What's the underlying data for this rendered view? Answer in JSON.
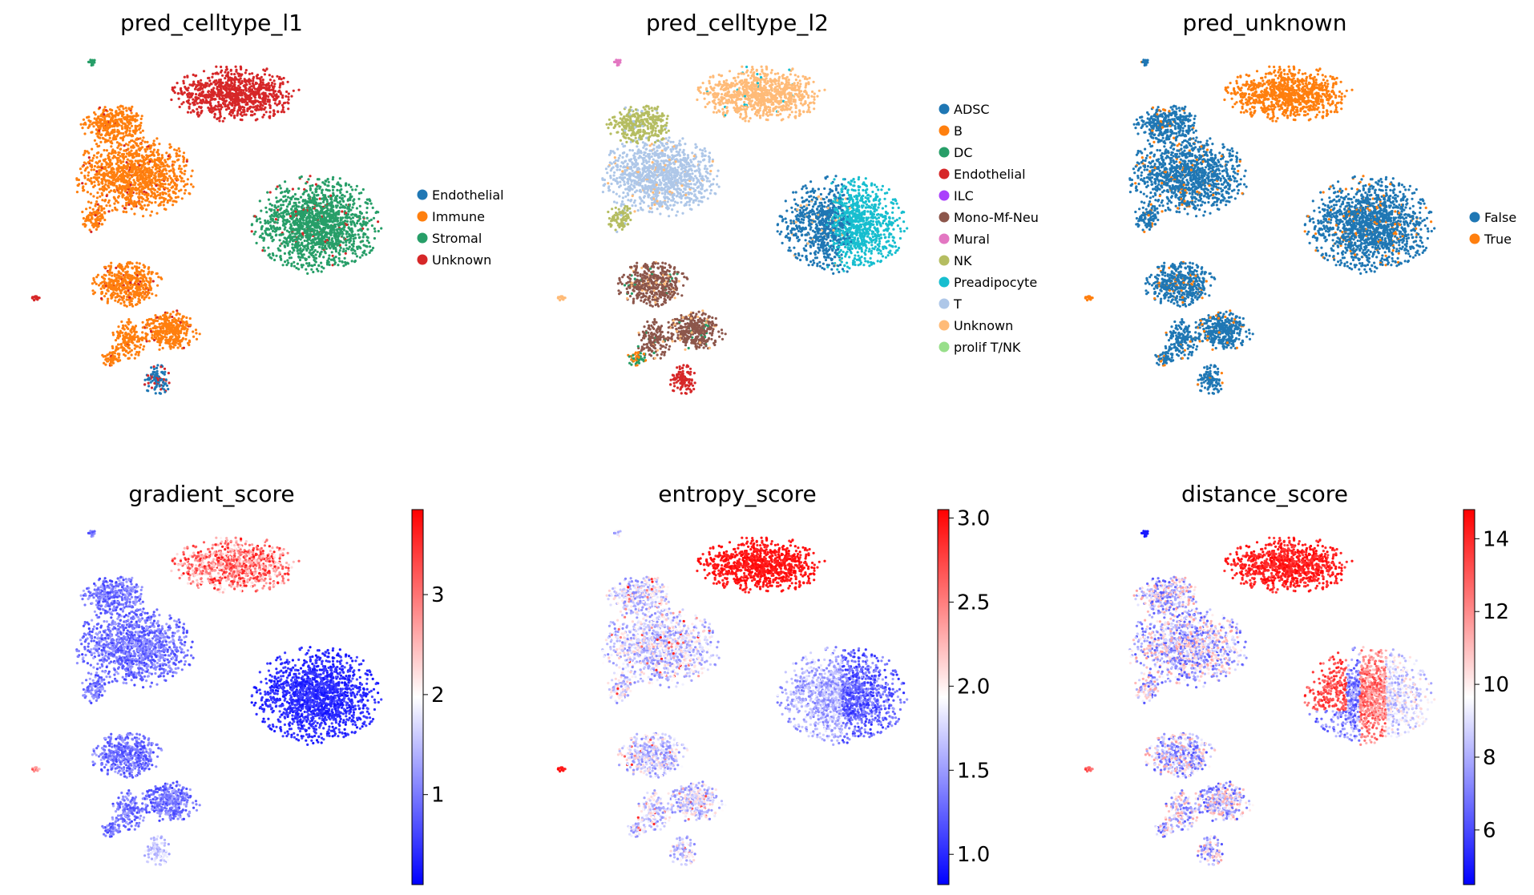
{
  "chart_data": [
    {
      "type": "scatter",
      "title": "pred_celltype_l1",
      "xlabel": "",
      "ylabel": "",
      "categorical": true,
      "legend_placement": "right",
      "legend": [
        {
          "label": "Endothelial",
          "color": "#1f77b4"
        },
        {
          "label": "Immune",
          "color": "#ff7f0e"
        },
        {
          "label": "Stromal",
          "color": "#279e68"
        },
        {
          "label": "Unknown",
          "color": "#d62728"
        }
      ]
    },
    {
      "type": "scatter",
      "title": "pred_celltype_l2",
      "xlabel": "",
      "ylabel": "",
      "categorical": true,
      "legend_placement": "right",
      "legend": [
        {
          "label": "ADSC",
          "color": "#1f77b4"
        },
        {
          "label": "B",
          "color": "#ff7f0e"
        },
        {
          "label": "DC",
          "color": "#279e68"
        },
        {
          "label": "Endothelial",
          "color": "#d62728"
        },
        {
          "label": "ILC",
          "color": "#aa40fc"
        },
        {
          "label": "Mono-Mf-Neu",
          "color": "#8c564b"
        },
        {
          "label": "Mural",
          "color": "#e377c2"
        },
        {
          "label": "NK",
          "color": "#b5bd61"
        },
        {
          "label": "Preadipocyte",
          "color": "#17becf"
        },
        {
          "label": "T",
          "color": "#aec7e8"
        },
        {
          "label": "Unknown",
          "color": "#ffbb78"
        },
        {
          "label": "prolif T/NK",
          "color": "#98df8a"
        }
      ]
    },
    {
      "type": "scatter",
      "title": "pred_unknown",
      "xlabel": "",
      "ylabel": "",
      "categorical": true,
      "legend_placement": "right",
      "legend": [
        {
          "label": "False",
          "color": "#1f77b4"
        },
        {
          "label": "True",
          "color": "#ff7f0e"
        }
      ]
    },
    {
      "type": "scatter",
      "title": "gradient_score",
      "xlabel": "",
      "ylabel": "",
      "categorical": false,
      "colormap": "bwr",
      "colorbar": {
        "min": 0.1,
        "max": 3.85,
        "ticks": [
          1,
          2,
          3
        ],
        "tick_labels": [
          "1",
          "2",
          "3"
        ]
      }
    },
    {
      "type": "scatter",
      "title": "entropy_score",
      "xlabel": "",
      "ylabel": "",
      "categorical": false,
      "colormap": "bwr",
      "colorbar": {
        "min": 0.82,
        "max": 3.05,
        "ticks": [
          1.0,
          1.5,
          2.0,
          2.5,
          3.0
        ],
        "tick_labels": [
          "1.0",
          "1.5",
          "2.0",
          "2.5",
          "3.0"
        ]
      }
    },
    {
      "type": "scatter",
      "title": "distance_score",
      "xlabel": "",
      "ylabel": "",
      "categorical": false,
      "colormap": "bwr",
      "colorbar": {
        "min": 4.5,
        "max": 14.8,
        "ticks": [
          6,
          8,
          10,
          12,
          14
        ],
        "tick_labels": [
          "6",
          "8",
          "10",
          "12",
          "14"
        ]
      }
    }
  ]
}
